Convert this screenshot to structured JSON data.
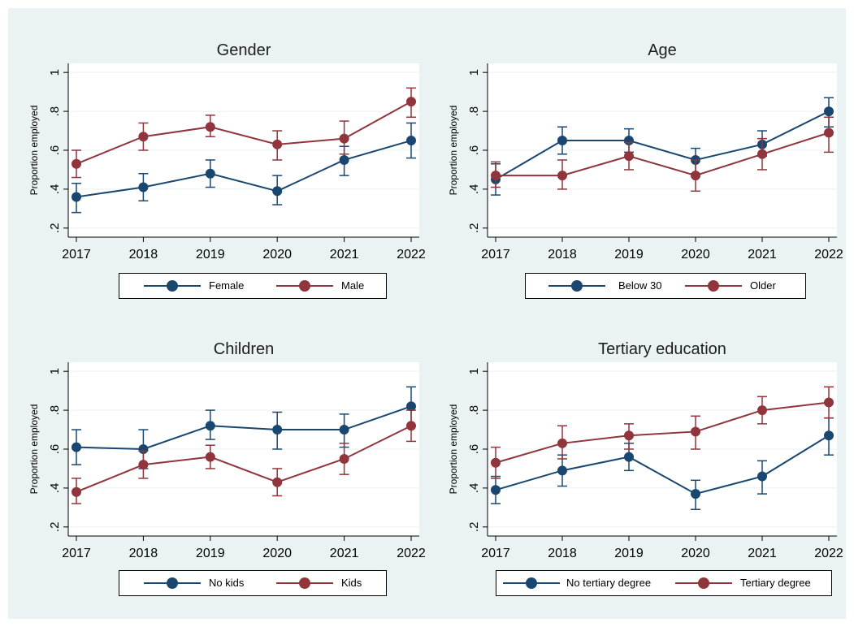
{
  "colors": {
    "background": "#eaf2f3",
    "plot_background": "#ffffff",
    "grid": "#eaf2f3",
    "series_1": "#1a476f",
    "series_2": "#90353b"
  },
  "chart_data": [
    {
      "type": "line",
      "title": "Gender",
      "ylabel": "Proportion employed",
      "xlabel": "",
      "x": [
        2017,
        2018,
        2019,
        2020,
        2021,
        2022
      ],
      "x_tick_labels": [
        "2017",
        "2018",
        "2019",
        "2020",
        "2021",
        "2022"
      ],
      "y_ticks": [
        0.2,
        0.4,
        0.6,
        0.8,
        1
      ],
      "y_tick_labels": [
        ".2",
        ".4",
        ".6",
        ".8",
        "1"
      ],
      "ylim": [
        0.17,
        1.03
      ],
      "grid": true,
      "legend_position": "bottom",
      "series": [
        {
          "name": "Female",
          "color": "#1a476f",
          "values": [
            0.36,
            0.41,
            0.48,
            0.39,
            0.55,
            0.65
          ],
          "ci_low": [
            0.28,
            0.34,
            0.41,
            0.32,
            0.47,
            0.56
          ],
          "ci_high": [
            0.43,
            0.48,
            0.55,
            0.47,
            0.62,
            0.74
          ]
        },
        {
          "name": "Male",
          "color": "#90353b",
          "values": [
            0.53,
            0.67,
            0.72,
            0.63,
            0.66,
            0.85
          ],
          "ci_low": [
            0.46,
            0.6,
            0.67,
            0.55,
            0.58,
            0.77
          ],
          "ci_high": [
            0.6,
            0.74,
            0.78,
            0.7,
            0.75,
            0.92
          ]
        }
      ]
    },
    {
      "type": "line",
      "title": "Age",
      "ylabel": "Proportion employed",
      "xlabel": "",
      "x": [
        2017,
        2018,
        2019,
        2020,
        2021,
        2022
      ],
      "x_tick_labels": [
        "2017",
        "2018",
        "2019",
        "2020",
        "2021",
        "2022"
      ],
      "y_ticks": [
        0.2,
        0.4,
        0.6,
        0.8,
        1
      ],
      "y_tick_labels": [
        ".2",
        ".4",
        ".6",
        ".8",
        "1"
      ],
      "ylim": [
        0.17,
        1.03
      ],
      "grid": true,
      "legend_position": "bottom",
      "series": [
        {
          "name": "Below 30",
          "color": "#1a476f",
          "values": [
            0.45,
            0.65,
            0.65,
            0.55,
            0.63,
            0.8
          ],
          "ci_low": [
            0.37,
            0.58,
            0.59,
            0.48,
            0.57,
            0.72
          ],
          "ci_high": [
            0.53,
            0.72,
            0.71,
            0.61,
            0.7,
            0.87
          ]
        },
        {
          "name": "Older",
          "color": "#90353b",
          "values": [
            0.47,
            0.47,
            0.57,
            0.47,
            0.58,
            0.69
          ],
          "ci_low": [
            0.41,
            0.4,
            0.5,
            0.39,
            0.5,
            0.59
          ],
          "ci_high": [
            0.54,
            0.55,
            0.64,
            0.55,
            0.66,
            0.77
          ]
        }
      ]
    },
    {
      "type": "line",
      "title": "Children",
      "ylabel": "Proportion employed",
      "xlabel": "",
      "x": [
        2017,
        2018,
        2019,
        2020,
        2021,
        2022
      ],
      "x_tick_labels": [
        "2017",
        "2018",
        "2019",
        "2020",
        "2021",
        "2022"
      ],
      "y_ticks": [
        0.2,
        0.4,
        0.6,
        0.8,
        1
      ],
      "y_tick_labels": [
        ".2",
        ".4",
        ".6",
        ".8",
        "1"
      ],
      "ylim": [
        0.17,
        1.03
      ],
      "grid": true,
      "legend_position": "bottom",
      "series": [
        {
          "name": "No kids",
          "color": "#1a476f",
          "values": [
            0.61,
            0.6,
            0.72,
            0.7,
            0.7,
            0.82
          ],
          "ci_low": [
            0.52,
            0.5,
            0.65,
            0.6,
            0.61,
            0.72
          ],
          "ci_high": [
            0.7,
            0.7,
            0.8,
            0.79,
            0.78,
            0.92
          ]
        },
        {
          "name": "Kids",
          "color": "#90353b",
          "values": [
            0.38,
            0.52,
            0.56,
            0.43,
            0.55,
            0.72
          ],
          "ci_low": [
            0.32,
            0.45,
            0.5,
            0.36,
            0.47,
            0.64
          ],
          "ci_high": [
            0.45,
            0.59,
            0.62,
            0.5,
            0.63,
            0.8
          ]
        }
      ]
    },
    {
      "type": "line",
      "title": "Tertiary education",
      "ylabel": "Proportion employed",
      "xlabel": "",
      "x": [
        2017,
        2018,
        2019,
        2020,
        2021,
        2022
      ],
      "x_tick_labels": [
        "2017",
        "2018",
        "2019",
        "2020",
        "2021",
        "2022"
      ],
      "y_ticks": [
        0.2,
        0.4,
        0.6,
        0.8,
        1
      ],
      "y_tick_labels": [
        ".2",
        ".4",
        ".6",
        ".8",
        "1"
      ],
      "ylim": [
        0.17,
        1.03
      ],
      "grid": true,
      "legend_position": "bottom",
      "series": [
        {
          "name": "No tertiary degree",
          "color": "#1a476f",
          "values": [
            0.39,
            0.49,
            0.56,
            0.37,
            0.46,
            0.67
          ],
          "ci_low": [
            0.32,
            0.41,
            0.49,
            0.29,
            0.37,
            0.57
          ],
          "ci_high": [
            0.46,
            0.57,
            0.63,
            0.44,
            0.54,
            0.76
          ]
        },
        {
          "name": "Tertiary degree",
          "color": "#90353b",
          "values": [
            0.53,
            0.63,
            0.67,
            0.69,
            0.8,
            0.84
          ],
          "ci_low": [
            0.45,
            0.55,
            0.6,
            0.6,
            0.73,
            0.76
          ],
          "ci_high": [
            0.61,
            0.72,
            0.73,
            0.77,
            0.87,
            0.92
          ]
        }
      ]
    }
  ]
}
